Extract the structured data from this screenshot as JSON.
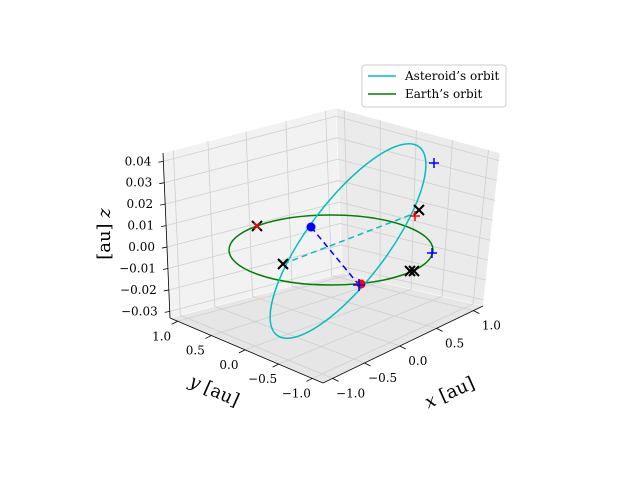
{
  "chart_data": {
    "type": "line",
    "projection": "3d",
    "x_axis": {
      "ticks": [
        "1.0",
        "0.5",
        "0.0",
        "−0.5",
        "−1.0"
      ],
      "label_var": "x",
      "label_unit": "[au]"
    },
    "y_axis": {
      "ticks": [
        "1.0",
        "0.5",
        "0.0",
        "−0.5",
        "−1.0"
      ],
      "label_var": "y",
      "label_unit": "[au]"
    },
    "z_axis": {
      "ticks": [
        "0.04",
        "0.03",
        "0.02",
        "0.01",
        "0.00",
        "−0.01",
        "−0.02",
        "−0.03"
      ],
      "label_var": "z",
      "label_unit": "[au]"
    },
    "xlim": [
      -1.2,
      1.2
    ],
    "ylim": [
      -1.2,
      1.2
    ],
    "zlim": [
      -0.035,
      0.045
    ],
    "grid": true,
    "legend_position": "top-right",
    "series": [
      {
        "name": "Asteroid’s orbit",
        "color": "#00bfbf",
        "kind": "ellipse",
        "inclination_deg": 4.0,
        "radius_au": 1.0
      },
      {
        "name": "Earth’s orbit",
        "color": "#008000",
        "kind": "circle",
        "inclination_deg": 0.0,
        "radius_au": 1.0
      }
    ],
    "markers": {
      "black_x": [
        {
          "x": 0.05,
          "y": 1.0,
          "z": 0.0
        },
        {
          "x": 0.8,
          "y": -0.6,
          "z": 0.0
        },
        {
          "x": -0.1,
          "y": -0.95,
          "z": 0.0
        },
        {
          "x": 0.95,
          "y": 0.1,
          "z": 0.028
        }
      ],
      "red_x": [
        {
          "x": 0.05,
          "y": 1.0,
          "z": 0.0
        }
      ],
      "blue_plus": [
        {
          "x": 1.0,
          "y": -0.6,
          "z": 0.0
        },
        {
          "x": 1.0,
          "y": -0.2,
          "z": 0.043
        },
        {
          "x": -0.9,
          "y": -0.05,
          "z": 0.0
        }
      ],
      "red_plus": [
        {
          "x": 0.98,
          "y": 0.15,
          "z": 0.026
        }
      ],
      "blue_dot": [
        {
          "x": 0.0,
          "y": 0.0,
          "z": 0.012
        }
      ],
      "red_dot": [
        {
          "x": -0.9,
          "y": -0.05,
          "z": 0.0
        }
      ]
    },
    "colors": {
      "asteroid": "#00bfbf",
      "earth": "#008000",
      "dash_blue": "#0000ff",
      "dash_cyan": "#00bfbf",
      "marker_red": "#ff0000",
      "marker_blue": "#0000ff"
    }
  }
}
